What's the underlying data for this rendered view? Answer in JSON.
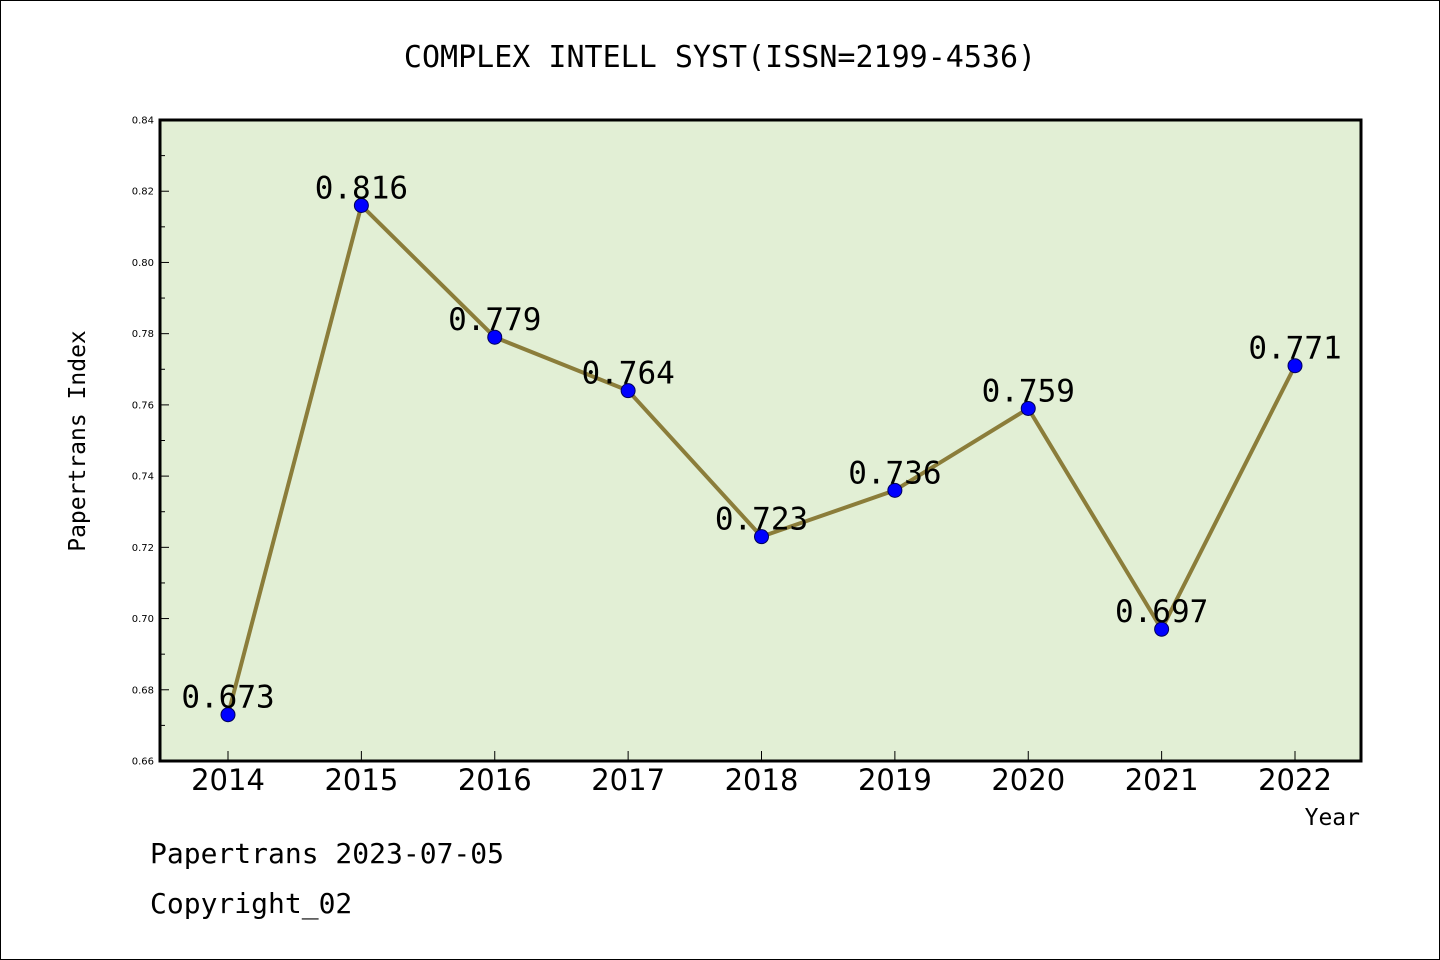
{
  "chart_data": {
    "type": "line",
    "title": "COMPLEX INTELL SYST(ISSN=2199-4536)",
    "xlabel": "Year",
    "ylabel": "Papertrans Index",
    "categories": [
      "2014",
      "2015",
      "2016",
      "2017",
      "2018",
      "2019",
      "2020",
      "2021",
      "2022"
    ],
    "values": [
      0.673,
      0.816,
      0.779,
      0.764,
      0.723,
      0.736,
      0.759,
      0.697,
      0.771
    ],
    "data_labels": [
      "0.673",
      "0.816",
      "0.779",
      "0.764",
      "0.723",
      "0.736",
      "0.759",
      "0.697",
      "0.771"
    ],
    "ylim": [
      0.66,
      0.84
    ],
    "yticks": [
      "0.66",
      "0.68",
      "0.70",
      "0.72",
      "0.74",
      "0.76",
      "0.78",
      "0.80",
      "0.82",
      "0.84"
    ],
    "grid": false,
    "legend": "none"
  },
  "colors": {
    "plot_background": "#e2efd5",
    "line": "#8b7d3a",
    "marker": "#0000ff"
  },
  "footer": {
    "line1": "Papertrans 2023-07-05",
    "line2": "Copyright_02"
  }
}
